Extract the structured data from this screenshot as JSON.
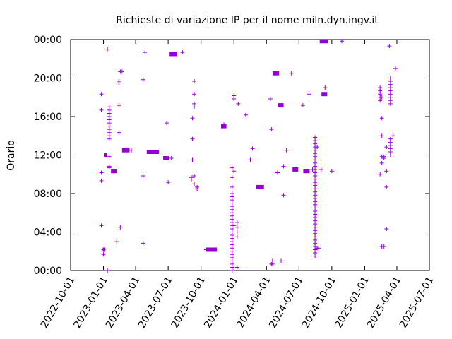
{
  "chart_data": {
    "type": "scatter",
    "title": "Richieste di variazione IP per il nome miln.dyn.ingv.it",
    "ylabel": "Orario",
    "xlabel": "",
    "point_color": "#9400d3",
    "marker": "plus",
    "grid": false,
    "xlim": [
      "2022-10-01",
      "2025-07-01"
    ],
    "ylim": [
      "00:00",
      "24:00"
    ],
    "x_ticks": [
      "2022-10-01",
      "2023-01-01",
      "2023-04-01",
      "2023-07-01",
      "2023-10-01",
      "2024-01-01",
      "2024-04-01",
      "2024-07-01",
      "2024-10-01",
      "2025-01-01",
      "2025-04-01",
      "2025-07-01"
    ],
    "y_ticks": [
      "00:00",
      "04:00",
      "08:00",
      "12:00",
      "16:00",
      "20:00",
      "00:00"
    ],
    "clusters": [
      {
        "x": "2022-12-26",
        "y": [
          "18:20",
          "16:40",
          "10:10",
          "09:20",
          "04:40"
        ]
      },
      {
        "x": "2023-01-01",
        "y": [
          "02:10",
          "01:40"
        ]
      },
      {
        "x": "2023-01-05",
        "y": [
          "12:00"
        ]
      },
      {
        "x": "2023-01-12",
        "y": [
          "23:00",
          "00:00"
        ]
      },
      {
        "x": "2023-01-17",
        "y": [
          "17:00",
          "16:40",
          "16:20",
          "16:00",
          "15:40",
          "15:20",
          "15:00",
          "14:40",
          "14:20",
          "14:00",
          "13:40",
          "11:50",
          "10:50",
          "10:40"
        ]
      },
      {
        "x": "2023-01-28",
        "y": [
          "10:20"
        ]
      },
      {
        "x": "2023-02-07",
        "y": [
          "03:00"
        ]
      },
      {
        "x": "2023-02-13",
        "y": [
          "17:10",
          "14:20",
          "19:40",
          "19:30"
        ]
      },
      {
        "x": "2023-02-17",
        "y": [
          "20:40",
          "04:30"
        ]
      },
      {
        "x": "2023-02-22",
        "y": [
          "20:40"
        ]
      },
      {
        "x": "2023-03-20",
        "y": [
          "12:30"
        ]
      },
      {
        "x": "2023-04-22",
        "y": [
          "19:50",
          "09:50",
          "02:50"
        ]
      },
      {
        "x": "2023-04-27",
        "y": [
          "22:40"
        ]
      },
      {
        "x": "2023-05-22",
        "y": [
          "12:20"
        ]
      },
      {
        "x": "2023-06-27",
        "y": [
          "15:20"
        ]
      },
      {
        "x": "2023-07-01",
        "y": [
          "09:10"
        ]
      },
      {
        "x": "2023-07-10",
        "y": [
          "11:40"
        ]
      },
      {
        "x": "2023-08-10",
        "y": [
          "22:40"
        ]
      },
      {
        "x": "2023-09-04",
        "y": [
          "09:30",
          "09:40"
        ]
      },
      {
        "x": "2023-09-07",
        "y": [
          "13:40",
          "11:30",
          "15:50"
        ]
      },
      {
        "x": "2023-09-12",
        "y": [
          "19:40",
          "18:20",
          "17:20",
          "17:00",
          "09:50",
          "09:00"
        ]
      },
      {
        "x": "2023-09-20",
        "y": [
          "08:30",
          "08:40"
        ]
      },
      {
        "x": "2023-10-15",
        "y": [
          "02:10"
        ]
      },
      {
        "x": "2023-12-04",
        "y": [
          "15:10"
        ]
      },
      {
        "x": "2023-12-27",
        "y": [
          "08:00",
          "07:40",
          "07:20",
          "07:00",
          "06:40",
          "06:20",
          "06:00",
          "05:40",
          "05:20",
          "05:00",
          "04:40",
          "04:20",
          "04:00",
          "03:40",
          "03:20",
          "03:00",
          "02:40",
          "02:20",
          "02:00",
          "01:40",
          "01:20",
          "01:00",
          "00:40",
          "00:20",
          "00:00",
          "08:40",
          "09:40",
          "10:40"
        ]
      },
      {
        "x": "2024-01-01",
        "y": [
          "18:10",
          "17:50",
          "10:20",
          "04:40"
        ]
      },
      {
        "x": "2024-01-10",
        "y": [
          "05:00",
          "04:30",
          "04:00",
          "03:30",
          "00:20"
        ]
      },
      {
        "x": "2024-01-13",
        "y": [
          "17:20"
        ]
      },
      {
        "x": "2024-02-03",
        "y": [
          "16:10"
        ]
      },
      {
        "x": "2024-02-16",
        "y": [
          "11:30"
        ]
      },
      {
        "x": "2024-02-22",
        "y": [
          "12:40"
        ]
      },
      {
        "x": "2024-03-17",
        "y": [
          "08:40"
        ]
      },
      {
        "x": "2024-04-12",
        "y": [
          "17:50"
        ]
      },
      {
        "x": "2024-04-15",
        "y": [
          "14:40",
          "00:40"
        ]
      },
      {
        "x": "2024-04-18",
        "y": [
          "01:00",
          "00:40"
        ]
      },
      {
        "x": "2024-05-02",
        "y": [
          "10:10"
        ]
      },
      {
        "x": "2024-05-12",
        "y": [
          "01:00"
        ]
      },
      {
        "x": "2024-05-19",
        "y": [
          "10:50",
          "07:50"
        ]
      },
      {
        "x": "2024-05-27",
        "y": [
          "12:30"
        ]
      },
      {
        "x": "2024-06-10",
        "y": [
          "20:30"
        ]
      },
      {
        "x": "2024-07-12",
        "y": [
          "17:10"
        ]
      },
      {
        "x": "2024-07-29",
        "y": [
          "18:20"
        ]
      },
      {
        "x": "2024-08-08",
        "y": [
          "10:30"
        ]
      },
      {
        "x": "2024-08-15",
        "y": [
          "13:50",
          "13:30",
          "13:10",
          "12:50",
          "12:30",
          "12:10",
          "11:50",
          "11:30",
          "11:10",
          "10:50",
          "10:30",
          "10:10",
          "09:50",
          "09:30",
          "09:10",
          "08:50",
          "08:30",
          "08:10",
          "07:50",
          "07:30",
          "07:10",
          "06:50",
          "06:30",
          "06:10",
          "05:50",
          "05:30",
          "05:10",
          "04:50",
          "04:30",
          "04:10",
          "03:50",
          "03:30",
          "03:10",
          "02:50",
          "02:30",
          "02:10",
          "01:50",
          "01:30"
        ]
      },
      {
        "x": "2024-08-21",
        "y": [
          "12:50",
          "02:20"
        ]
      },
      {
        "x": "2024-08-25",
        "y": [
          "02:20"
        ]
      },
      {
        "x": "2024-09-01",
        "y": [
          "10:30"
        ]
      },
      {
        "x": "2024-09-12",
        "y": [
          "19:00"
        ]
      },
      {
        "x": "2024-10-01",
        "y": [
          "10:20"
        ]
      },
      {
        "x": "2024-10-29",
        "y": [
          "23:50"
        ]
      },
      {
        "x": "2025-02-13",
        "y": [
          "19:00",
          "18:40",
          "18:20",
          "18:00",
          "17:40",
          "10:00"
        ]
      },
      {
        "x": "2025-02-18",
        "y": [
          "18:00",
          "15:50",
          "14:00",
          "11:50",
          "11:10",
          "02:30"
        ]
      },
      {
        "x": "2025-02-24",
        "y": [
          "11:40",
          "11:50",
          "02:30"
        ]
      },
      {
        "x": "2025-03-03",
        "y": [
          "12:50",
          "10:20",
          "04:20",
          "08:40"
        ]
      },
      {
        "x": "2025-03-11",
        "y": [
          "23:20"
        ]
      },
      {
        "x": "2025-03-14",
        "y": [
          "20:00",
          "19:40",
          "19:20",
          "19:00",
          "18:40",
          "18:20",
          "18:00",
          "17:40",
          "17:20",
          "13:40",
          "13:20",
          "13:00",
          "12:40",
          "12:20",
          "12:00"
        ]
      },
      {
        "x": "2025-03-21",
        "y": [
          "14:00"
        ]
      },
      {
        "x": "2025-03-28",
        "y": [
          "21:00"
        ]
      }
    ],
    "segments": [
      {
        "x_start": "2022-12-30",
        "x_end": "2023-01-06",
        "y": "02:10"
      },
      {
        "x_start": "2023-01-02",
        "x_end": "2023-01-10",
        "y": "12:00"
      },
      {
        "x_start": "2023-01-22",
        "x_end": "2023-02-08",
        "y": "10:20"
      },
      {
        "x_start": "2023-02-22",
        "x_end": "2023-03-15",
        "y": "12:30"
      },
      {
        "x_start": "2023-05-02",
        "x_end": "2023-06-05",
        "y": "12:20"
      },
      {
        "x_start": "2023-06-17",
        "x_end": "2023-07-03",
        "y": "11:40"
      },
      {
        "x_start": "2023-07-05",
        "x_end": "2023-07-26",
        "y": "22:30"
      },
      {
        "x_start": "2023-10-14",
        "x_end": "2023-11-14",
        "y": "02:10"
      },
      {
        "x_start": "2023-11-26",
        "x_end": "2023-12-11",
        "y": "15:00"
      },
      {
        "x_start": "2024-03-03",
        "x_end": "2024-03-25",
        "y": "08:40"
      },
      {
        "x_start": "2024-04-18",
        "x_end": "2024-05-06",
        "y": "20:30"
      },
      {
        "x_start": "2024-05-04",
        "x_end": "2024-05-19",
        "y": "17:10"
      },
      {
        "x_start": "2024-06-13",
        "x_end": "2024-06-29",
        "y": "10:30"
      },
      {
        "x_start": "2024-07-13",
        "x_end": "2024-07-31",
        "y": "10:20"
      },
      {
        "x_start": "2024-08-28",
        "x_end": "2024-09-20",
        "y": "23:50"
      },
      {
        "x_start": "2024-09-02",
        "x_end": "2024-09-18",
        "y": "18:20"
      }
    ]
  }
}
